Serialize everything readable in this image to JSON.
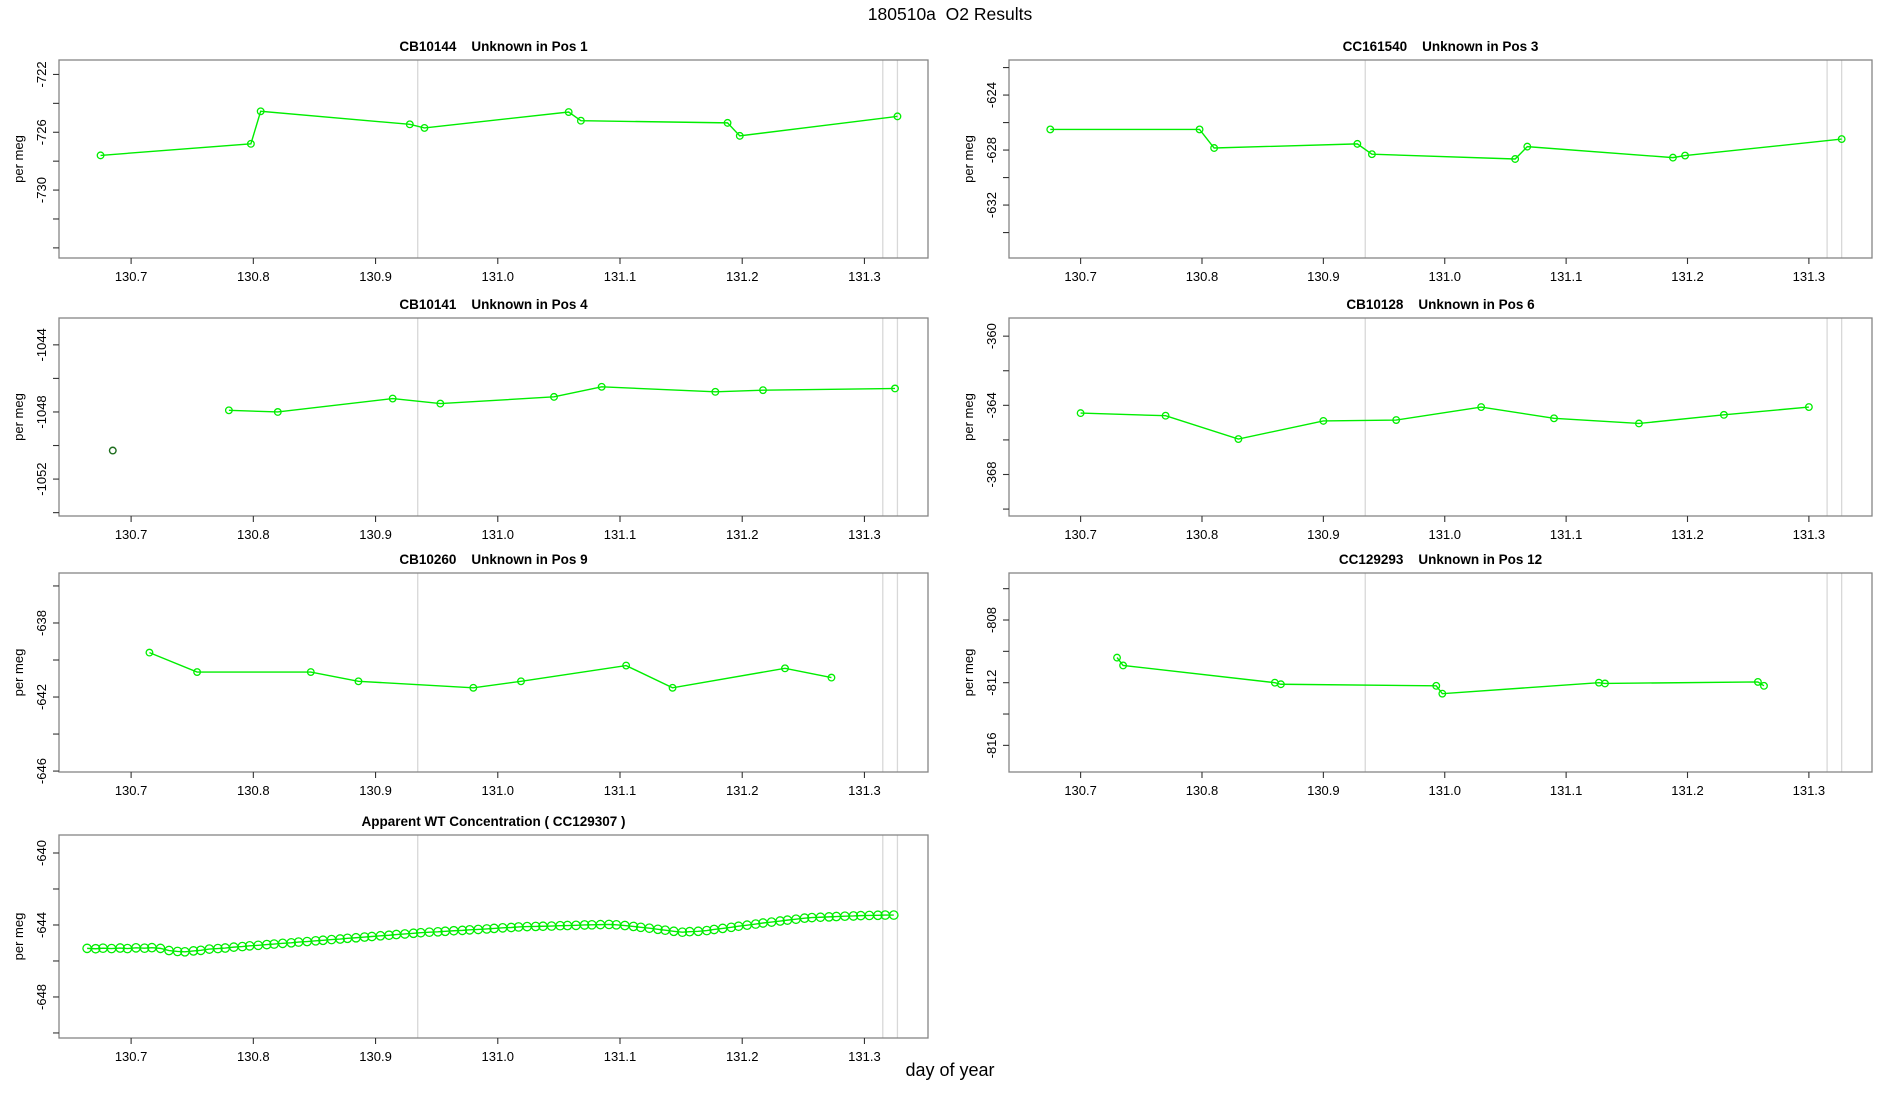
{
  "figure": {
    "title": "180510a  O2 Results",
    "xlabel": "day of year",
    "ylabel": "per meg"
  },
  "colors": {
    "series_green": "#00ee00",
    "outlier_dark_green": "#1d6d1d",
    "run_marker_gray": "#d8d8d8",
    "box_gray": "#858585",
    "tick_black": "#333333"
  },
  "chart_data": [
    {
      "id": "cb10144-pos1",
      "type": "line",
      "title": "CB10144    Unknown in Pos 1",
      "row": 1,
      "col": "left",
      "ylabel": "per meg",
      "xlim": [
        130.641,
        131.352
      ],
      "ylim": [
        -734.7,
        -721.0
      ],
      "x_ticks": [
        130.7,
        130.8,
        130.9,
        131.0,
        131.1,
        131.2,
        131.3
      ],
      "y_ticks_labeled": [
        -722,
        -726,
        -730
      ],
      "y_tick_minor_step": 2,
      "vlines": [
        130.9345,
        131.315,
        131.327
      ],
      "marker_radius": 3.3,
      "x": [
        130.675,
        130.798,
        130.806,
        130.928,
        130.94,
        131.058,
        131.068,
        131.188,
        131.198,
        131.327
      ],
      "y": [
        -727.6,
        -726.8,
        -724.55,
        -725.45,
        -725.7,
        -724.6,
        -725.2,
        -725.35,
        -726.25,
        -724.9
      ]
    },
    {
      "id": "cc161540-pos3",
      "type": "line",
      "title": "CC161540    Unknown in Pos 3",
      "row": 1,
      "col": "right",
      "ylabel": "per meg",
      "xlim": [
        130.641,
        131.352
      ],
      "ylim": [
        -635.85,
        -621.45
      ],
      "x_ticks": [
        130.7,
        130.8,
        130.9,
        131.0,
        131.1,
        131.2,
        131.3
      ],
      "y_ticks_labeled": [
        -624,
        -628,
        -632
      ],
      "y_tick_minor_step": 2,
      "vlines": [
        130.9345,
        131.315,
        131.327
      ],
      "marker_radius": 3.3,
      "x": [
        130.675,
        130.798,
        130.81,
        130.928,
        130.94,
        131.058,
        131.068,
        131.188,
        131.198,
        131.327
      ],
      "y": [
        -626.5,
        -626.5,
        -627.85,
        -627.55,
        -628.3,
        -628.65,
        -627.75,
        -628.55,
        -628.4,
        -627.2
      ]
    },
    {
      "id": "cb10141-pos4",
      "type": "line",
      "title": "CB10141    Unknown in Pos 4",
      "row": 2,
      "col": "left",
      "ylabel": "per meg",
      "xlim": [
        130.641,
        131.352
      ],
      "ylim": [
        -1054.2,
        -1042.4
      ],
      "x_ticks": [
        130.7,
        130.8,
        130.9,
        131.0,
        131.1,
        131.2,
        131.3
      ],
      "y_ticks_labeled": [
        -1044,
        -1048,
        -1052
      ],
      "y_tick_minor_step": 2,
      "vlines": [
        130.9345,
        131.315,
        131.327
      ],
      "marker_radius": 3.3,
      "x": [
        130.78,
        130.82,
        130.914,
        130.953,
        131.046,
        131.085,
        131.178,
        131.217,
        131.325
      ],
      "y": [
        -1047.9,
        -1048.0,
        -1047.2,
        -1047.5,
        -1047.1,
        -1046.5,
        -1046.8,
        -1046.7,
        -1046.6
      ],
      "outlier": {
        "x": 130.685,
        "y": -1050.3
      }
    },
    {
      "id": "cb10128-pos6",
      "type": "line",
      "title": "CB10128    Unknown in Pos 6",
      "row": 2,
      "col": "right",
      "ylabel": "per meg",
      "xlim": [
        130.641,
        131.352
      ],
      "ylim": [
        -370.4,
        -358.95
      ],
      "x_ticks": [
        130.7,
        130.8,
        130.9,
        131.0,
        131.1,
        131.2,
        131.3
      ],
      "y_ticks_labeled": [
        -360,
        -364,
        -368
      ],
      "y_tick_minor_step": 2,
      "vlines": [
        130.9345,
        131.315,
        131.327
      ],
      "marker_radius": 3.3,
      "x": [
        130.7,
        130.77,
        130.83,
        130.9,
        130.96,
        131.03,
        131.09,
        131.16,
        131.23,
        131.3
      ],
      "y": [
        -364.45,
        -364.6,
        -365.95,
        -364.9,
        -364.85,
        -364.1,
        -364.75,
        -365.05,
        -364.55,
        -364.1
      ]
    },
    {
      "id": "cb10260-pos9",
      "type": "line",
      "title": "CB10260    Unknown in Pos 9",
      "row": 3,
      "col": "left",
      "ylabel": "per meg",
      "xlim": [
        130.641,
        131.352
      ],
      "ylim": [
        -646.05,
        -635.3
      ],
      "x_ticks": [
        130.7,
        130.8,
        130.9,
        131.0,
        131.1,
        131.2,
        131.3
      ],
      "y_ticks_labeled": [
        -638,
        -642,
        -646
      ],
      "y_tick_minor_step": 2,
      "vlines": [
        130.9345,
        131.315,
        131.327
      ],
      "marker_radius": 3.3,
      "x": [
        130.715,
        130.754,
        130.847,
        130.886,
        130.98,
        131.019,
        131.105,
        131.143,
        131.235,
        131.273
      ],
      "y": [
        -639.6,
        -640.65,
        -640.65,
        -641.15,
        -641.5,
        -641.15,
        -640.3,
        -641.5,
        -640.45,
        -640.95
      ]
    },
    {
      "id": "cc129293-pos12",
      "type": "line",
      "title": "CC129293    Unknown in Pos 12",
      "row": 3,
      "col": "right",
      "ylabel": "per meg",
      "xlim": [
        130.641,
        131.352
      ],
      "ylim": [
        -817.7,
        -805.0
      ],
      "x_ticks": [
        130.7,
        130.8,
        130.9,
        131.0,
        131.1,
        131.2,
        131.3
      ],
      "y_ticks_labeled": [
        -808,
        -812,
        -816
      ],
      "y_tick_minor_step": 2,
      "vlines": [
        130.9345,
        131.315,
        131.327
      ],
      "marker_radius": 3.3,
      "x": [
        130.73,
        130.735,
        130.86,
        130.865,
        130.993,
        130.998,
        131.127,
        131.132,
        131.258,
        131.263
      ],
      "y": [
        -810.4,
        -810.9,
        -812.0,
        -812.1,
        -812.2,
        -812.7,
        -812.0,
        -812.05,
        -811.95,
        -812.2
      ]
    },
    {
      "id": "apparent-wt-cc129307",
      "type": "line",
      "title": "Apparent WT Concentration ( CC129307 )",
      "row": 4,
      "col": "left",
      "ylabel": "per meg",
      "xlim": [
        130.641,
        131.352
      ],
      "ylim": [
        -650.28,
        -639.0
      ],
      "x_ticks": [
        130.7,
        130.8,
        130.9,
        131.0,
        131.1,
        131.2,
        131.3
      ],
      "y_ticks_labeled": [
        -640,
        -644,
        -648
      ],
      "y_tick_minor_step": 2,
      "vlines": [
        130.9345,
        131.315,
        131.327
      ],
      "marker_radius": 4.2,
      "x": [
        130.664,
        130.671,
        130.677,
        130.684,
        130.691,
        130.697,
        130.704,
        130.711,
        130.717,
        130.724,
        130.731,
        130.738,
        130.744,
        130.751,
        130.757,
        130.764,
        130.771,
        130.777,
        130.784,
        130.791,
        130.797,
        130.804,
        130.811,
        130.817,
        130.824,
        130.831,
        130.837,
        130.844,
        130.851,
        130.857,
        130.864,
        130.871,
        130.877,
        130.884,
        130.891,
        130.897,
        130.904,
        130.911,
        130.917,
        130.924,
        130.931,
        130.937,
        130.944,
        130.951,
        130.957,
        130.964,
        130.971,
        130.977,
        130.984,
        130.991,
        130.997,
        131.004,
        131.011,
        131.017,
        131.024,
        131.031,
        131.037,
        131.044,
        131.051,
        131.057,
        131.064,
        131.071,
        131.077,
        131.084,
        131.091,
        131.097,
        131.104,
        131.111,
        131.117,
        131.124,
        131.131,
        131.137,
        131.144,
        131.151,
        131.157,
        131.164,
        131.171,
        131.177,
        131.184,
        131.191,
        131.197,
        131.204,
        131.211,
        131.217,
        131.224,
        131.231,
        131.237,
        131.244,
        131.251,
        131.257,
        131.264,
        131.271,
        131.277,
        131.284,
        131.291,
        131.297,
        131.304,
        131.311,
        131.317,
        131.324
      ],
      "y": [
        -645.3,
        -645.32,
        -645.29,
        -645.31,
        -645.28,
        -645.31,
        -645.27,
        -645.29,
        -645.26,
        -645.3,
        -645.42,
        -645.47,
        -645.49,
        -645.44,
        -645.41,
        -645.34,
        -645.31,
        -645.28,
        -645.23,
        -645.2,
        -645.16,
        -645.13,
        -645.09,
        -645.06,
        -645.02,
        -644.99,
        -644.95,
        -644.92,
        -644.88,
        -644.85,
        -644.81,
        -644.78,
        -644.74,
        -644.71,
        -644.67,
        -644.64,
        -644.6,
        -644.57,
        -644.53,
        -644.5,
        -644.46,
        -644.43,
        -644.4,
        -644.38,
        -644.35,
        -644.32,
        -644.3,
        -644.27,
        -644.25,
        -644.22,
        -644.19,
        -644.16,
        -644.14,
        -644.11,
        -644.09,
        -644.08,
        -644.07,
        -644.06,
        -644.04,
        -644.03,
        -644.02,
        -644.0,
        -643.99,
        -643.98,
        -643.97,
        -643.99,
        -644.03,
        -644.08,
        -644.13,
        -644.18,
        -644.24,
        -644.29,
        -644.35,
        -644.4,
        -644.37,
        -644.35,
        -644.31,
        -644.25,
        -644.19,
        -644.13,
        -644.07,
        -644.01,
        -643.95,
        -643.89,
        -643.84,
        -643.78,
        -643.73,
        -643.68,
        -643.62,
        -643.59,
        -643.57,
        -643.55,
        -643.53,
        -643.51,
        -643.5,
        -643.48,
        -643.47,
        -643.46,
        -643.45,
        -643.45
      ]
    }
  ]
}
